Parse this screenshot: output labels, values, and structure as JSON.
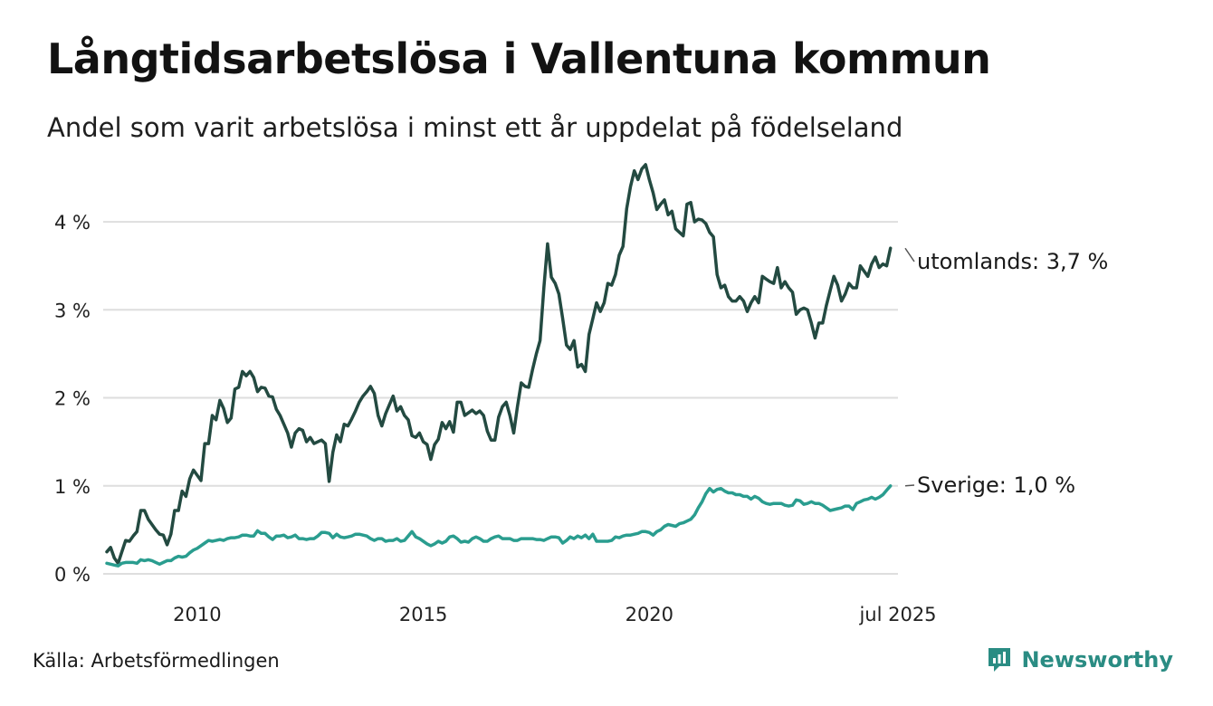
{
  "title": "Långtidsarbetslösa i Vallentuna kommun",
  "subtitle": "Andel som varit arbetslösa i minst ett år uppdelat på födelseland",
  "source": "Källa: Arbetsförmedlingen",
  "brand": {
    "name": "Newsworthy",
    "icon": "newsworthy-logo-icon",
    "color": "#2a8c83"
  },
  "chart_data": {
    "type": "line",
    "x_start": "2008-01",
    "x_end": "2025-07",
    "frequency": "monthly",
    "ylim": [
      0,
      4.7
    ],
    "ytick_values": [
      0,
      1,
      2,
      3,
      4
    ],
    "ytick_labels": [
      "0 %",
      "1 %",
      "2 %",
      "3 %",
      "4 %"
    ],
    "xtick_values": [
      "2010-01",
      "2015-01",
      "2020-01",
      "2025-07"
    ],
    "xtick_labels": [
      "2010",
      "2015",
      "2020",
      "jul 2025"
    ],
    "grid": true,
    "legend": "direct labels at line ends",
    "series": [
      {
        "name": "utomlands",
        "color": "#234a41",
        "end_label": "utomlands: 3,7 %",
        "values": [
          0.25,
          0.3,
          0.18,
          0.12,
          0.25,
          0.38,
          0.37,
          0.43,
          0.48,
          0.72,
          0.72,
          0.62,
          0.56,
          0.5,
          0.45,
          0.44,
          0.33,
          0.45,
          0.72,
          0.72,
          0.94,
          0.88,
          1.08,
          1.18,
          1.12,
          1.06,
          1.48,
          1.48,
          1.8,
          1.75,
          1.97,
          1.88,
          1.72,
          1.77,
          2.1,
          2.12,
          2.3,
          2.25,
          2.3,
          2.23,
          2.07,
          2.12,
          2.11,
          2.02,
          2.01,
          1.87,
          1.8,
          1.7,
          1.6,
          1.44,
          1.6,
          1.65,
          1.63,
          1.5,
          1.55,
          1.48,
          1.5,
          1.52,
          1.48,
          1.05,
          1.38,
          1.58,
          1.5,
          1.7,
          1.68,
          1.76,
          1.85,
          1.95,
          2.02,
          2.07,
          2.13,
          2.05,
          1.8,
          1.68,
          1.82,
          1.92,
          2.02,
          1.85,
          1.9,
          1.8,
          1.75,
          1.57,
          1.55,
          1.6,
          1.5,
          1.47,
          1.3,
          1.47,
          1.53,
          1.72,
          1.65,
          1.73,
          1.61,
          1.95,
          1.95,
          1.8,
          1.83,
          1.86,
          1.82,
          1.85,
          1.8,
          1.62,
          1.52,
          1.52,
          1.78,
          1.9,
          1.95,
          1.8,
          1.6,
          1.9,
          2.17,
          2.13,
          2.12,
          2.32,
          2.5,
          2.65,
          3.25,
          3.75,
          3.37,
          3.3,
          3.18,
          2.9,
          2.6,
          2.55,
          2.65,
          2.35,
          2.38,
          2.3,
          2.72,
          2.9,
          3.08,
          2.98,
          3.08,
          3.3,
          3.28,
          3.4,
          3.62,
          3.72,
          4.15,
          4.4,
          4.58,
          4.48,
          4.6,
          4.65,
          4.48,
          4.33,
          4.14,
          4.2,
          4.25,
          4.08,
          4.12,
          3.92,
          3.88,
          3.84,
          4.2,
          4.22,
          4.0,
          4.03,
          4.02,
          3.98,
          3.88,
          3.83,
          3.4,
          3.25,
          3.28,
          3.15,
          3.1,
          3.1,
          3.15,
          3.1,
          2.98,
          3.08,
          3.15,
          3.08,
          3.38,
          3.35,
          3.32,
          3.3,
          3.48,
          3.25,
          3.32,
          3.25,
          3.2,
          2.95,
          3.0,
          3.02,
          3.0,
          2.85,
          2.68,
          2.85,
          2.85,
          3.05,
          3.22,
          3.38,
          3.28,
          3.1,
          3.18,
          3.3,
          3.25,
          3.25,
          3.5,
          3.44,
          3.38,
          3.52,
          3.6,
          3.48,
          3.52,
          3.5,
          3.7
        ]
      },
      {
        "name": "Sverige",
        "color": "#2a9d8f",
        "end_label": "Sverige: 1,0 %",
        "values": [
          0.12,
          0.11,
          0.1,
          0.09,
          0.12,
          0.13,
          0.13,
          0.13,
          0.12,
          0.16,
          0.15,
          0.16,
          0.15,
          0.13,
          0.11,
          0.13,
          0.15,
          0.15,
          0.18,
          0.2,
          0.19,
          0.2,
          0.24,
          0.27,
          0.29,
          0.32,
          0.35,
          0.38,
          0.37,
          0.38,
          0.39,
          0.38,
          0.4,
          0.41,
          0.41,
          0.42,
          0.44,
          0.44,
          0.43,
          0.43,
          0.49,
          0.46,
          0.46,
          0.42,
          0.39,
          0.43,
          0.43,
          0.44,
          0.41,
          0.42,
          0.44,
          0.4,
          0.4,
          0.39,
          0.4,
          0.4,
          0.43,
          0.47,
          0.47,
          0.46,
          0.41,
          0.45,
          0.42,
          0.41,
          0.42,
          0.43,
          0.45,
          0.45,
          0.44,
          0.43,
          0.4,
          0.38,
          0.4,
          0.4,
          0.37,
          0.38,
          0.38,
          0.4,
          0.37,
          0.38,
          0.43,
          0.48,
          0.42,
          0.4,
          0.37,
          0.34,
          0.32,
          0.34,
          0.37,
          0.35,
          0.37,
          0.42,
          0.43,
          0.4,
          0.36,
          0.37,
          0.36,
          0.4,
          0.42,
          0.4,
          0.37,
          0.37,
          0.4,
          0.42,
          0.43,
          0.4,
          0.4,
          0.4,
          0.38,
          0.38,
          0.4,
          0.4,
          0.4,
          0.4,
          0.39,
          0.39,
          0.38,
          0.4,
          0.42,
          0.42,
          0.41,
          0.35,
          0.38,
          0.42,
          0.4,
          0.43,
          0.41,
          0.44,
          0.4,
          0.45,
          0.37,
          0.37,
          0.37,
          0.37,
          0.38,
          0.42,
          0.41,
          0.43,
          0.44,
          0.44,
          0.45,
          0.46,
          0.48,
          0.48,
          0.47,
          0.44,
          0.48,
          0.5,
          0.54,
          0.56,
          0.55,
          0.54,
          0.57,
          0.58,
          0.6,
          0.62,
          0.67,
          0.75,
          0.82,
          0.91,
          0.97,
          0.93,
          0.96,
          0.97,
          0.94,
          0.92,
          0.92,
          0.9,
          0.9,
          0.88,
          0.88,
          0.85,
          0.88,
          0.86,
          0.82,
          0.8,
          0.79,
          0.8,
          0.8,
          0.8,
          0.78,
          0.77,
          0.78,
          0.84,
          0.83,
          0.79,
          0.8,
          0.82,
          0.8,
          0.8,
          0.78,
          0.75,
          0.72,
          0.73,
          0.74,
          0.75,
          0.77,
          0.77,
          0.73,
          0.8,
          0.82,
          0.84,
          0.85,
          0.87,
          0.85,
          0.87,
          0.9,
          0.95,
          1.0
        ]
      }
    ]
  }
}
